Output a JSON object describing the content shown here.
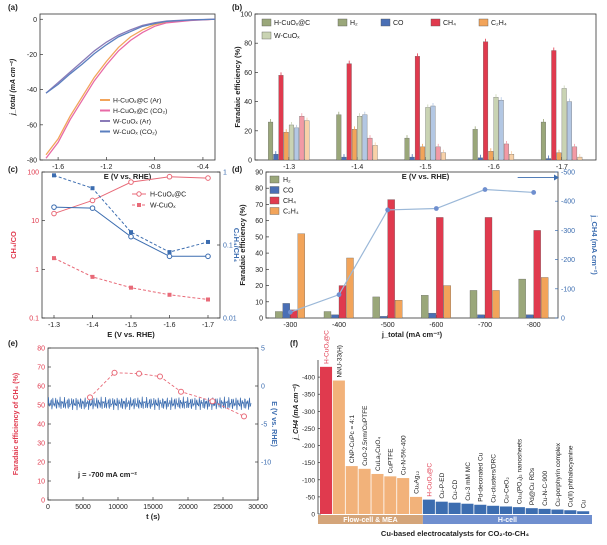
{
  "panels": {
    "a": {
      "label": "(a)",
      "xlabel": "E (V vs. RHE)",
      "ylabel": "j_total (mA cm⁻²)",
      "xlim": [
        -1.75,
        -0.3
      ],
      "ylim": [
        -80,
        3
      ],
      "xticks": [
        -1.6,
        -1.2,
        -0.8,
        -0.4
      ],
      "xtick_labels": [
        "-1.6",
        "-1.2",
        "-0.8",
        "-0.4"
      ],
      "yticks": [
        0,
        -20,
        -40,
        -60,
        -80
      ],
      "ytick_labels": [
        "0",
        "-20",
        "-40",
        "-60",
        "-80"
      ],
      "legend": [
        {
          "label": "H-CuOₓ@C (Ar)",
          "color": "#f2a45a"
        },
        {
          "label": "H-CuOₓ@C (CO₂)",
          "color": "#e86aa6"
        },
        {
          "label": "W-CuOₓ (Ar)",
          "color": "#8a7bb8"
        },
        {
          "label": "W-CuOₓ (CO₂)",
          "color": "#5b7fbf"
        }
      ],
      "series": [
        {
          "name": "H-CuOₓ@C (Ar)",
          "color": "#f2a45a",
          "x": [
            -0.3,
            -0.5,
            -0.7,
            -0.8,
            -0.9,
            -1.0,
            -1.1,
            -1.2,
            -1.3,
            -1.4,
            -1.5,
            -1.6,
            -1.7
          ],
          "y": [
            0,
            -0.5,
            -1.5,
            -3,
            -6,
            -10,
            -16,
            -24,
            -33,
            -44,
            -55,
            -68,
            -77
          ]
        },
        {
          "name": "H-CuOₓ@C (CO₂)",
          "color": "#e86aa6",
          "x": [
            -0.3,
            -0.5,
            -0.7,
            -0.8,
            -0.9,
            -1.0,
            -1.1,
            -1.2,
            -1.3,
            -1.4,
            -1.5,
            -1.6,
            -1.7
          ],
          "y": [
            0,
            -0.7,
            -2,
            -4,
            -7.5,
            -12,
            -18,
            -26,
            -35,
            -46,
            -57,
            -70,
            -79
          ]
        },
        {
          "name": "W-CuOₓ (Ar)",
          "color": "#8a7bb8",
          "x": [
            -0.3,
            -0.5,
            -0.7,
            -0.8,
            -0.9,
            -1.0,
            -1.1,
            -1.2,
            -1.3,
            -1.4,
            -1.5,
            -1.6,
            -1.7
          ],
          "y": [
            0,
            -0.3,
            -1,
            -2,
            -3.5,
            -6,
            -9,
            -13,
            -18,
            -24,
            -30,
            -36,
            -42
          ]
        },
        {
          "name": "W-CuOₓ (CO₂)",
          "color": "#5b7fbf",
          "x": [
            -0.3,
            -0.5,
            -0.7,
            -0.8,
            -0.9,
            -1.0,
            -1.1,
            -1.2,
            -1.3,
            -1.4,
            -1.5,
            -1.6,
            -1.7
          ],
          "y": [
            0,
            -0.4,
            -1.2,
            -2.4,
            -4,
            -7,
            -10,
            -14.5,
            -19.5,
            -25.5,
            -31,
            -37,
            -42
          ]
        }
      ]
    },
    "b": {
      "label": "(b)",
      "xlabel": "E (V vs. RHE)",
      "ylabel": "Faradaic efficiency (%)",
      "ylim": [
        0,
        100
      ],
      "yticks": [
        0,
        20,
        40,
        60,
        80,
        100
      ],
      "ytick_labels": [
        "0",
        "20",
        "40",
        "60",
        "80",
        "100"
      ],
      "categories": [
        "-1.3",
        "-1.4",
        "-1.5",
        "-1.6",
        "-1.7"
      ],
      "legend": [
        {
          "label": "H-CuOₓ@C",
          "color": "#ffffff"
        },
        {
          "label": "H₂",
          "color": "#9aa77a"
        },
        {
          "label": "CO",
          "color": "#4a6fb5"
        },
        {
          "label": "CH₄",
          "color": "#e03a4e"
        },
        {
          "label": "C₂H₄",
          "color": "#f2a45a"
        },
        {
          "label": "W-CuOₓ",
          "color": "#ffffff"
        }
      ],
      "series": [
        {
          "name": "H-CuOₓ@C H₂",
          "color": "#9aa77a",
          "values": [
            26,
            31,
            15,
            21,
            26
          ]
        },
        {
          "name": "H-CuOₓ@C CO",
          "color": "#4a6fb5",
          "values": [
            4,
            2,
            2,
            1.5,
            1
          ]
        },
        {
          "name": "H-CuOₓ@C CH₄",
          "color": "#e03a4e",
          "values": [
            58,
            66,
            71,
            81,
            75
          ]
        },
        {
          "name": "H-CuOₓ@C C₂H₄",
          "color": "#f2a45a",
          "values": [
            19,
            21,
            9,
            6,
            5
          ]
        },
        {
          "name": "W-CuOₓ H₂",
          "color": "#c9d3b3",
          "values": [
            24,
            30,
            36,
            43,
            49
          ]
        },
        {
          "name": "W-CuOₓ CO",
          "color": "#b3c7e3",
          "values": [
            22,
            31,
            37,
            41,
            40
          ]
        },
        {
          "name": "W-CuOₓ CH₄",
          "color": "#f29aa5",
          "values": [
            30,
            15,
            9,
            11,
            9
          ]
        },
        {
          "name": "W-CuOₓ C₂H₄",
          "color": "#f8d1a8",
          "values": [
            27,
            10,
            5,
            4,
            2
          ]
        }
      ]
    },
    "c": {
      "label": "(c)",
      "xlabel": "E (V vs. RHE)",
      "ylabel_left": "CH₄/CO",
      "ylabel_right": "C₂H₄/CH₄",
      "categories": [
        "-1.3",
        "-1.4",
        "-1.5",
        "-1.6",
        "-1.7"
      ],
      "ylim_left": [
        0.1,
        100
      ],
      "yticks_left": [
        0.1,
        1,
        10,
        100
      ],
      "ytick_labels_left": [
        "0.1",
        "1",
        "10",
        "100"
      ],
      "ylim_right": [
        0.01,
        1
      ],
      "yticks_right": [
        0.01,
        0.1,
        1
      ],
      "ytick_labels_right": [
        "0.01",
        "0.1",
        "1"
      ],
      "legend": [
        {
          "label": "H-CuOₓ@C",
          "color": "#e86a78"
        },
        {
          "label": "W-CuOₓ",
          "color": "#e86a78"
        }
      ],
      "series": [
        {
          "name": "H-CuOₓ@C CH₄/CO",
          "axis": "left",
          "color": "#e86a78",
          "dash": false,
          "values": [
            14,
            26,
            62,
            80,
            75
          ]
        },
        {
          "name": "W-CuOₓ CH₄/CO",
          "axis": "left",
          "color": "#e86a78",
          "dash": true,
          "values": [
            1.7,
            0.7,
            0.42,
            0.3,
            0.24
          ]
        },
        {
          "name": "H-CuOₓ@C C₂H₄/CH₄",
          "axis": "right",
          "color": "#3c6db0",
          "dash": false,
          "values": [
            0.33,
            0.32,
            0.13,
            0.07,
            0.07
          ]
        },
        {
          "name": "W-CuOₓ C₂H₄/CH₄",
          "axis": "right",
          "color": "#3c6db0",
          "dash": true,
          "values": [
            0.9,
            0.6,
            0.15,
            0.08,
            0.11
          ]
        }
      ]
    },
    "d": {
      "label": "(d)",
      "xlabel": "j_total (mA cm⁻²)",
      "ylabel_left": "Faradaic efficiency (%)",
      "ylabel_right": "j_CH4 (mA cm⁻²)",
      "categories": [
        "-300",
        "-400",
        "-500",
        "-600",
        "-700",
        "-800"
      ],
      "ylim_left": [
        0,
        90
      ],
      "yticks_left": [
        0,
        10,
        20,
        30,
        40,
        50,
        60,
        70,
        80,
        90
      ],
      "ytick_labels_left": [
        "0",
        "10",
        "20",
        "30",
        "40",
        "50",
        "60",
        "70",
        "80",
        "90"
      ],
      "ylim_right": [
        0,
        -500
      ],
      "yticks_right": [
        0,
        -100,
        -200,
        -300,
        -400,
        -500
      ],
      "ytick_labels_right": [
        "0",
        "-100",
        "-200",
        "-300",
        "-400",
        "-500"
      ],
      "legend": [
        {
          "label": "H₂",
          "color": "#9aa77a"
        },
        {
          "label": "CO",
          "color": "#4a6fb5"
        },
        {
          "label": "CH₄",
          "color": "#e03a4e"
        },
        {
          "label": "C₂H₄",
          "color": "#f2a45a"
        }
      ],
      "series": [
        {
          "name": "H₂",
          "color": "#9aa77a",
          "values": [
            4,
            4,
            13,
            14,
            17,
            24
          ]
        },
        {
          "name": "CO",
          "color": "#4a6fb5",
          "values": [
            9,
            2,
            1,
            3,
            2,
            2
          ]
        },
        {
          "name": "CH₄",
          "color": "#e03a4e",
          "values": [
            5,
            20,
            73,
            62,
            62,
            54
          ]
        },
        {
          "name": "C₂H₄",
          "color": "#f2a45a",
          "values": [
            52,
            37,
            11,
            20,
            17,
            25
          ]
        }
      ],
      "line": {
        "name": "j_CH4",
        "color": "#9bb8d8",
        "values": [
          -20,
          -80,
          -370,
          -375,
          -440,
          -430
        ]
      }
    },
    "e": {
      "label": "(e)",
      "xlabel": "t (s)",
      "ylabel_left": "Faradaic efficiency of CH₄ (%)",
      "ylabel_right": "E (V vs. RHE)",
      "xlim": [
        0,
        30000
      ],
      "xticks": [
        0,
        5000,
        10000,
        15000,
        20000,
        25000,
        30000
      ],
      "xtick_labels": [
        "0",
        "5000",
        "10000",
        "15000",
        "20000",
        "25000",
        "30000"
      ],
      "ylim_left": [
        0,
        80
      ],
      "yticks_left": [
        0,
        10,
        20,
        30,
        40,
        50,
        60,
        70,
        80
      ],
      "ytick_labels_left": [
        "0",
        "10",
        "20",
        "30",
        "40",
        "50",
        "60",
        "70",
        "80"
      ],
      "ylim_right": [
        -15,
        5
      ],
      "yticks_right": [
        5,
        0,
        -5,
        -10
      ],
      "ytick_labels_right": [
        "5",
        "0",
        "-5",
        "-10"
      ],
      "annotation": "j = -700 mA cm⁻²",
      "fe_series": {
        "color": "#e86a78",
        "x": [
          6000,
          9500,
          13000,
          16000,
          19000,
          23500,
          28000
        ],
        "y": [
          54,
          67,
          66.5,
          65,
          57,
          52,
          44
        ]
      },
      "potential_series": {
        "color": "#3c6db0",
        "x_start": 0,
        "x_end": 29000,
        "mean": -2.3,
        "amplitude": 0.9
      }
    },
    "f": {
      "label": "(f)",
      "xlabel": "Cu-based electrocatalysts for CO₂-to-CH₄",
      "ylabel": "j_CH4 (mA cm⁻²)",
      "ylim": [
        0,
        -450
      ],
      "yticks": [
        0,
        -50,
        -100,
        -150,
        -200,
        -250,
        -300,
        -350,
        -400
      ],
      "ytick_labels": [
        "0",
        "-50",
        "-100",
        "-150",
        "-200",
        "-250",
        "-300",
        "-350",
        "-400"
      ],
      "group_labels": [
        {
          "label": "Flow-cell & MEA",
          "color": "#d4a57a"
        },
        {
          "label": "H-cell",
          "color": "#6f8fcf"
        }
      ],
      "bars": [
        {
          "label": "H-CuOₓ@C",
          "value": -430,
          "color": "#e03a4e",
          "highlight": true
        },
        {
          "label": "NNU-33(H)",
          "value": -390,
          "color": "#f2b27a",
          "highlight": false
        },
        {
          "label": "CNP-CuPc = 4:1",
          "value": -140,
          "color": "#f2b27a",
          "highlight": false
        },
        {
          "label": "CuO-2.5nm/CuPTFE",
          "value": -132,
          "color": "#f2b27a",
          "highlight": false
        },
        {
          "label": "CuLa₂CuO₄",
          "value": -117,
          "color": "#f2b27a",
          "highlight": false
        },
        {
          "label": "CuPTFE",
          "value": -110,
          "color": "#f2b27a",
          "highlight": false
        },
        {
          "label": "Cu-N-5%-400",
          "value": -105,
          "color": "#f2b27a",
          "highlight": false
        },
        {
          "label": "CuₓAg₁₂",
          "value": -50,
          "color": "#f2b27a",
          "highlight": false
        },
        {
          "label": "H-CuOₓ@C",
          "value": -42,
          "color": "#3c6db0",
          "highlight": true
        },
        {
          "label": "Cu-P-ED",
          "value": -36,
          "color": "#3c6db0",
          "highlight": false
        },
        {
          "label": "Cu-CD",
          "value": -33,
          "color": "#3c6db0",
          "highlight": false
        },
        {
          "label": "Cu-3 mM MC",
          "value": -30,
          "color": "#3c6db0",
          "highlight": false
        },
        {
          "label": "Pd-decorated Cu",
          "value": -27,
          "color": "#3c6db0",
          "highlight": false
        },
        {
          "label": "Cu-clusters/DRC",
          "value": -24,
          "color": "#3c6db0",
          "highlight": false
        },
        {
          "label": "Cu-CeO₂",
          "value": -22,
          "color": "#3c6db0",
          "highlight": false
        },
        {
          "label": "Cu₃(PO₄)₂ nanosheets",
          "value": -20,
          "color": "#3c6db0",
          "highlight": false
        },
        {
          "label": "Pd@Cu RDs",
          "value": -17,
          "color": "#3c6db0",
          "highlight": false
        },
        {
          "label": "Cu-N-C-900",
          "value": -15,
          "color": "#3c6db0",
          "highlight": false
        },
        {
          "label": "Cu-porphyrin complex",
          "value": -13,
          "color": "#3c6db0",
          "highlight": false
        },
        {
          "label": "Cu(II) phthalocyanine",
          "value": -11,
          "color": "#3c6db0",
          "highlight": false
        },
        {
          "label": "Cu",
          "value": -8,
          "color": "#3c6db0",
          "highlight": false
        }
      ]
    }
  }
}
